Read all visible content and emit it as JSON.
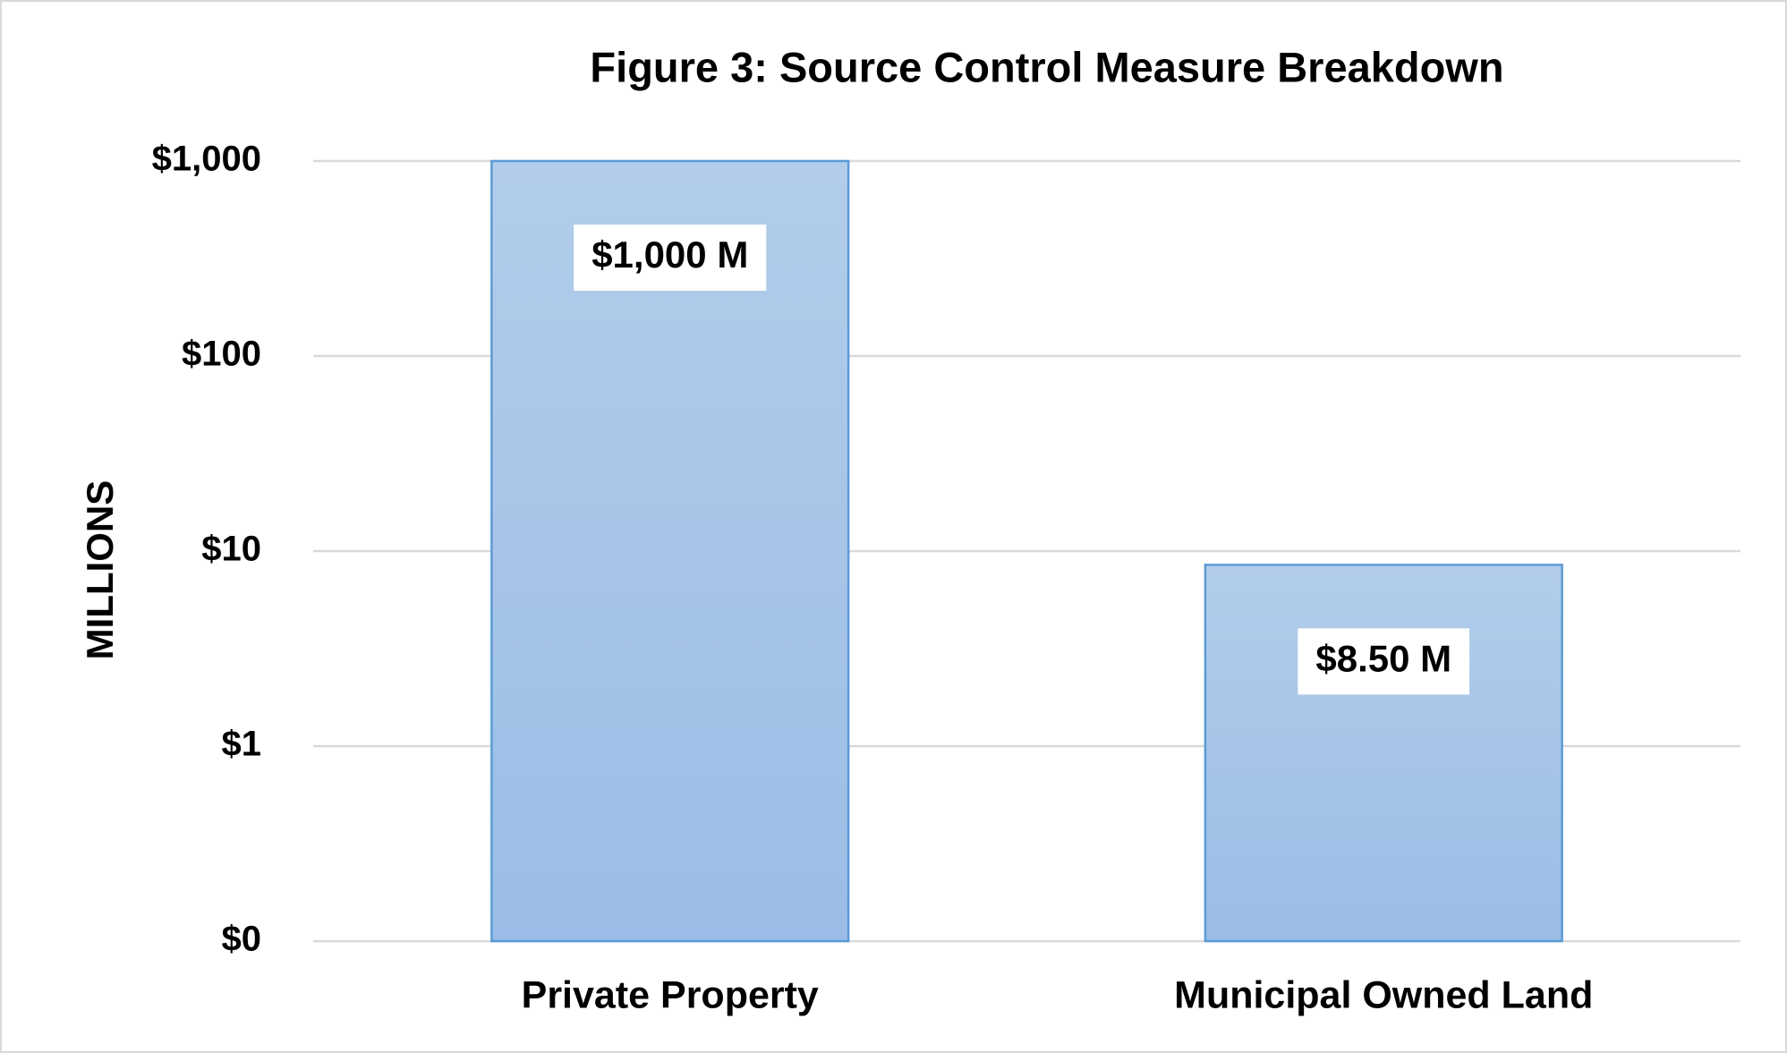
{
  "chart_data": {
    "type": "bar",
    "title": "Figure 3: Source Control Measure Breakdown",
    "y_label": "MILLIONS",
    "categories": [
      "Private Property",
      "Municipal Owned Land"
    ],
    "values": [
      1000,
      8.5
    ],
    "value_labels": [
      "$1,000 M",
      "$8.50 M"
    ],
    "color": "#9bbce6",
    "log_scale": true,
    "grid": true,
    "ylim": [
      0.1,
      1000
    ],
    "yticks": [
      {
        "value": 0.1,
        "label": "$0"
      },
      {
        "value": 1,
        "label": "$1"
      },
      {
        "value": 10,
        "label": "$10"
      },
      {
        "value": 100,
        "label": "$100"
      },
      {
        "value": 1000,
        "label": "$1,000"
      }
    ]
  }
}
